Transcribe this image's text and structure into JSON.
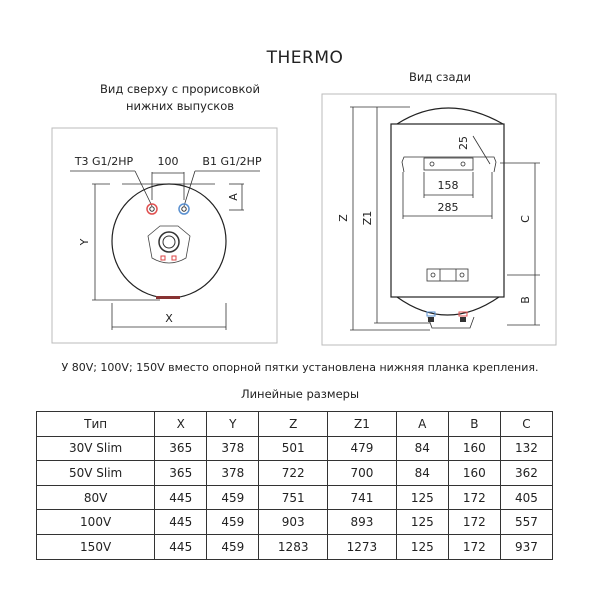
{
  "title": "THERMO",
  "top_view": {
    "caption_line1": "Вид сверху с прорисовкой",
    "caption_line2": "нижних выпусков",
    "label_hot_outlet": "Т3 G1/2НР",
    "label_cold_inlet": "В1 G1/2НР",
    "label_spacing": "100",
    "label_x": "X",
    "label_y": "Y",
    "label_a": "A",
    "hot_color": "#e05050",
    "cold_color": "#5a90d0"
  },
  "back_view": {
    "caption": "Вид сзади",
    "label_z": "Z",
    "label_z1": "Z1",
    "label_25": "25",
    "label_158": "158",
    "label_285": "285",
    "label_c": "C",
    "label_b": "B"
  },
  "note": "У 80V; 100V; 150V вместо опорной пятки установлена нижняя планка крепления.",
  "table": {
    "title": "Линейные размеры",
    "headers": [
      "Тип",
      "X",
      "Y",
      "Z",
      "Z1",
      "A",
      "B",
      "C"
    ],
    "rows": [
      [
        "30V Slim",
        "365",
        "378",
        "501",
        "479",
        "84",
        "160",
        "132"
      ],
      [
        "50V Slim",
        "365",
        "378",
        "722",
        "700",
        "84",
        "160",
        "362"
      ],
      [
        "80V",
        "445",
        "459",
        "751",
        "741",
        "125",
        "172",
        "405"
      ],
      [
        "100V",
        "445",
        "459",
        "903",
        "893",
        "125",
        "172",
        "557"
      ],
      [
        "150V",
        "445",
        "459",
        "1283",
        "1273",
        "125",
        "172",
        "937"
      ]
    ]
  }
}
